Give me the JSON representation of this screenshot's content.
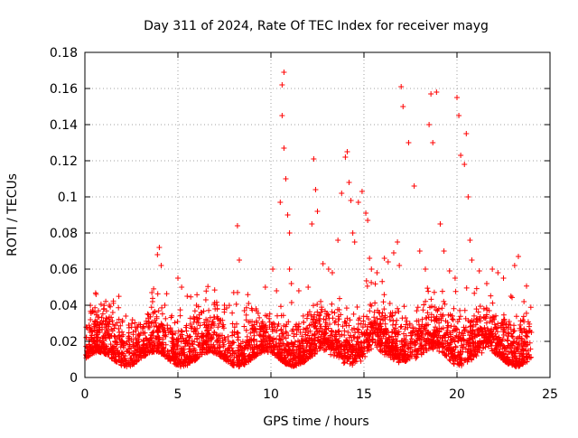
{
  "chart_data": {
    "type": "scatter",
    "title": "Day 311 of 2024, Rate Of TEC Index for receiver mayg",
    "xlabel": "GPS time / hours",
    "ylabel": "ROTI / TECUs",
    "xlim": [
      0,
      25
    ],
    "ylim": [
      0,
      0.18
    ],
    "xticks": [
      "0",
      "5",
      "10",
      "15",
      "20",
      "25"
    ],
    "yticks": [
      "0",
      "0.02",
      "0.04",
      "0.06",
      "0.08",
      "0.1",
      "0.12",
      "0.14",
      "0.16",
      "0.18"
    ],
    "grid": true,
    "marker": "+",
    "color": "#ff0000",
    "series": [
      {
        "name": "ROTI",
        "x": [
          0.3,
          0.6,
          1.2,
          1.5,
          2.2,
          2.8,
          3.3,
          3.6,
          3.9,
          4.0,
          4.1,
          4.3,
          5.0,
          5.2,
          5.5,
          6.0,
          6.5,
          7.0,
          7.5,
          8.0,
          8.2,
          8.3,
          8.8,
          9.2,
          9.7,
          10.1,
          10.3,
          10.5,
          10.6,
          10.6,
          10.7,
          10.7,
          10.8,
          10.9,
          11.0,
          11.0,
          11.1,
          11.5,
          12.0,
          12.2,
          12.3,
          12.4,
          12.5,
          12.8,
          13.1,
          13.3,
          13.6,
          13.8,
          14.0,
          14.1,
          14.2,
          14.3,
          14.4,
          14.5,
          14.7,
          14.9,
          15.1,
          15.2,
          15.3,
          15.4,
          15.7,
          16.1,
          16.3,
          16.6,
          16.8,
          16.9,
          17.0,
          17.1,
          17.4,
          17.7,
          18.0,
          18.3,
          18.5,
          18.6,
          18.7,
          18.9,
          19.1,
          19.3,
          19.6,
          19.9,
          20.0,
          20.1,
          20.2,
          20.4,
          20.5,
          20.6,
          20.7,
          20.8,
          21.2,
          21.6,
          21.9,
          22.2,
          22.5,
          22.9,
          23.1,
          23.3,
          23.6,
          24.0
        ],
        "y": [
          0.032,
          0.046,
          0.031,
          0.036,
          0.034,
          0.028,
          0.03,
          0.047,
          0.068,
          0.072,
          0.062,
          0.04,
          0.055,
          0.05,
          0.045,
          0.04,
          0.043,
          0.038,
          0.04,
          0.047,
          0.084,
          0.065,
          0.041,
          0.038,
          0.05,
          0.06,
          0.048,
          0.097,
          0.145,
          0.162,
          0.169,
          0.127,
          0.11,
          0.09,
          0.08,
          0.06,
          0.052,
          0.048,
          0.05,
          0.085,
          0.121,
          0.104,
          0.092,
          0.063,
          0.06,
          0.058,
          0.076,
          0.102,
          0.122,
          0.125,
          0.108,
          0.098,
          0.08,
          0.075,
          0.097,
          0.103,
          0.091,
          0.087,
          0.066,
          0.06,
          0.058,
          0.066,
          0.064,
          0.069,
          0.075,
          0.062,
          0.161,
          0.15,
          0.13,
          0.106,
          0.07,
          0.06,
          0.14,
          0.157,
          0.13,
          0.158,
          0.085,
          0.07,
          0.059,
          0.055,
          0.155,
          0.145,
          0.123,
          0.118,
          0.135,
          0.1,
          0.076,
          0.065,
          0.059,
          0.052,
          0.06,
          0.058,
          0.055,
          0.045,
          0.062,
          0.067,
          0.042,
          0.025
        ]
      }
    ]
  }
}
